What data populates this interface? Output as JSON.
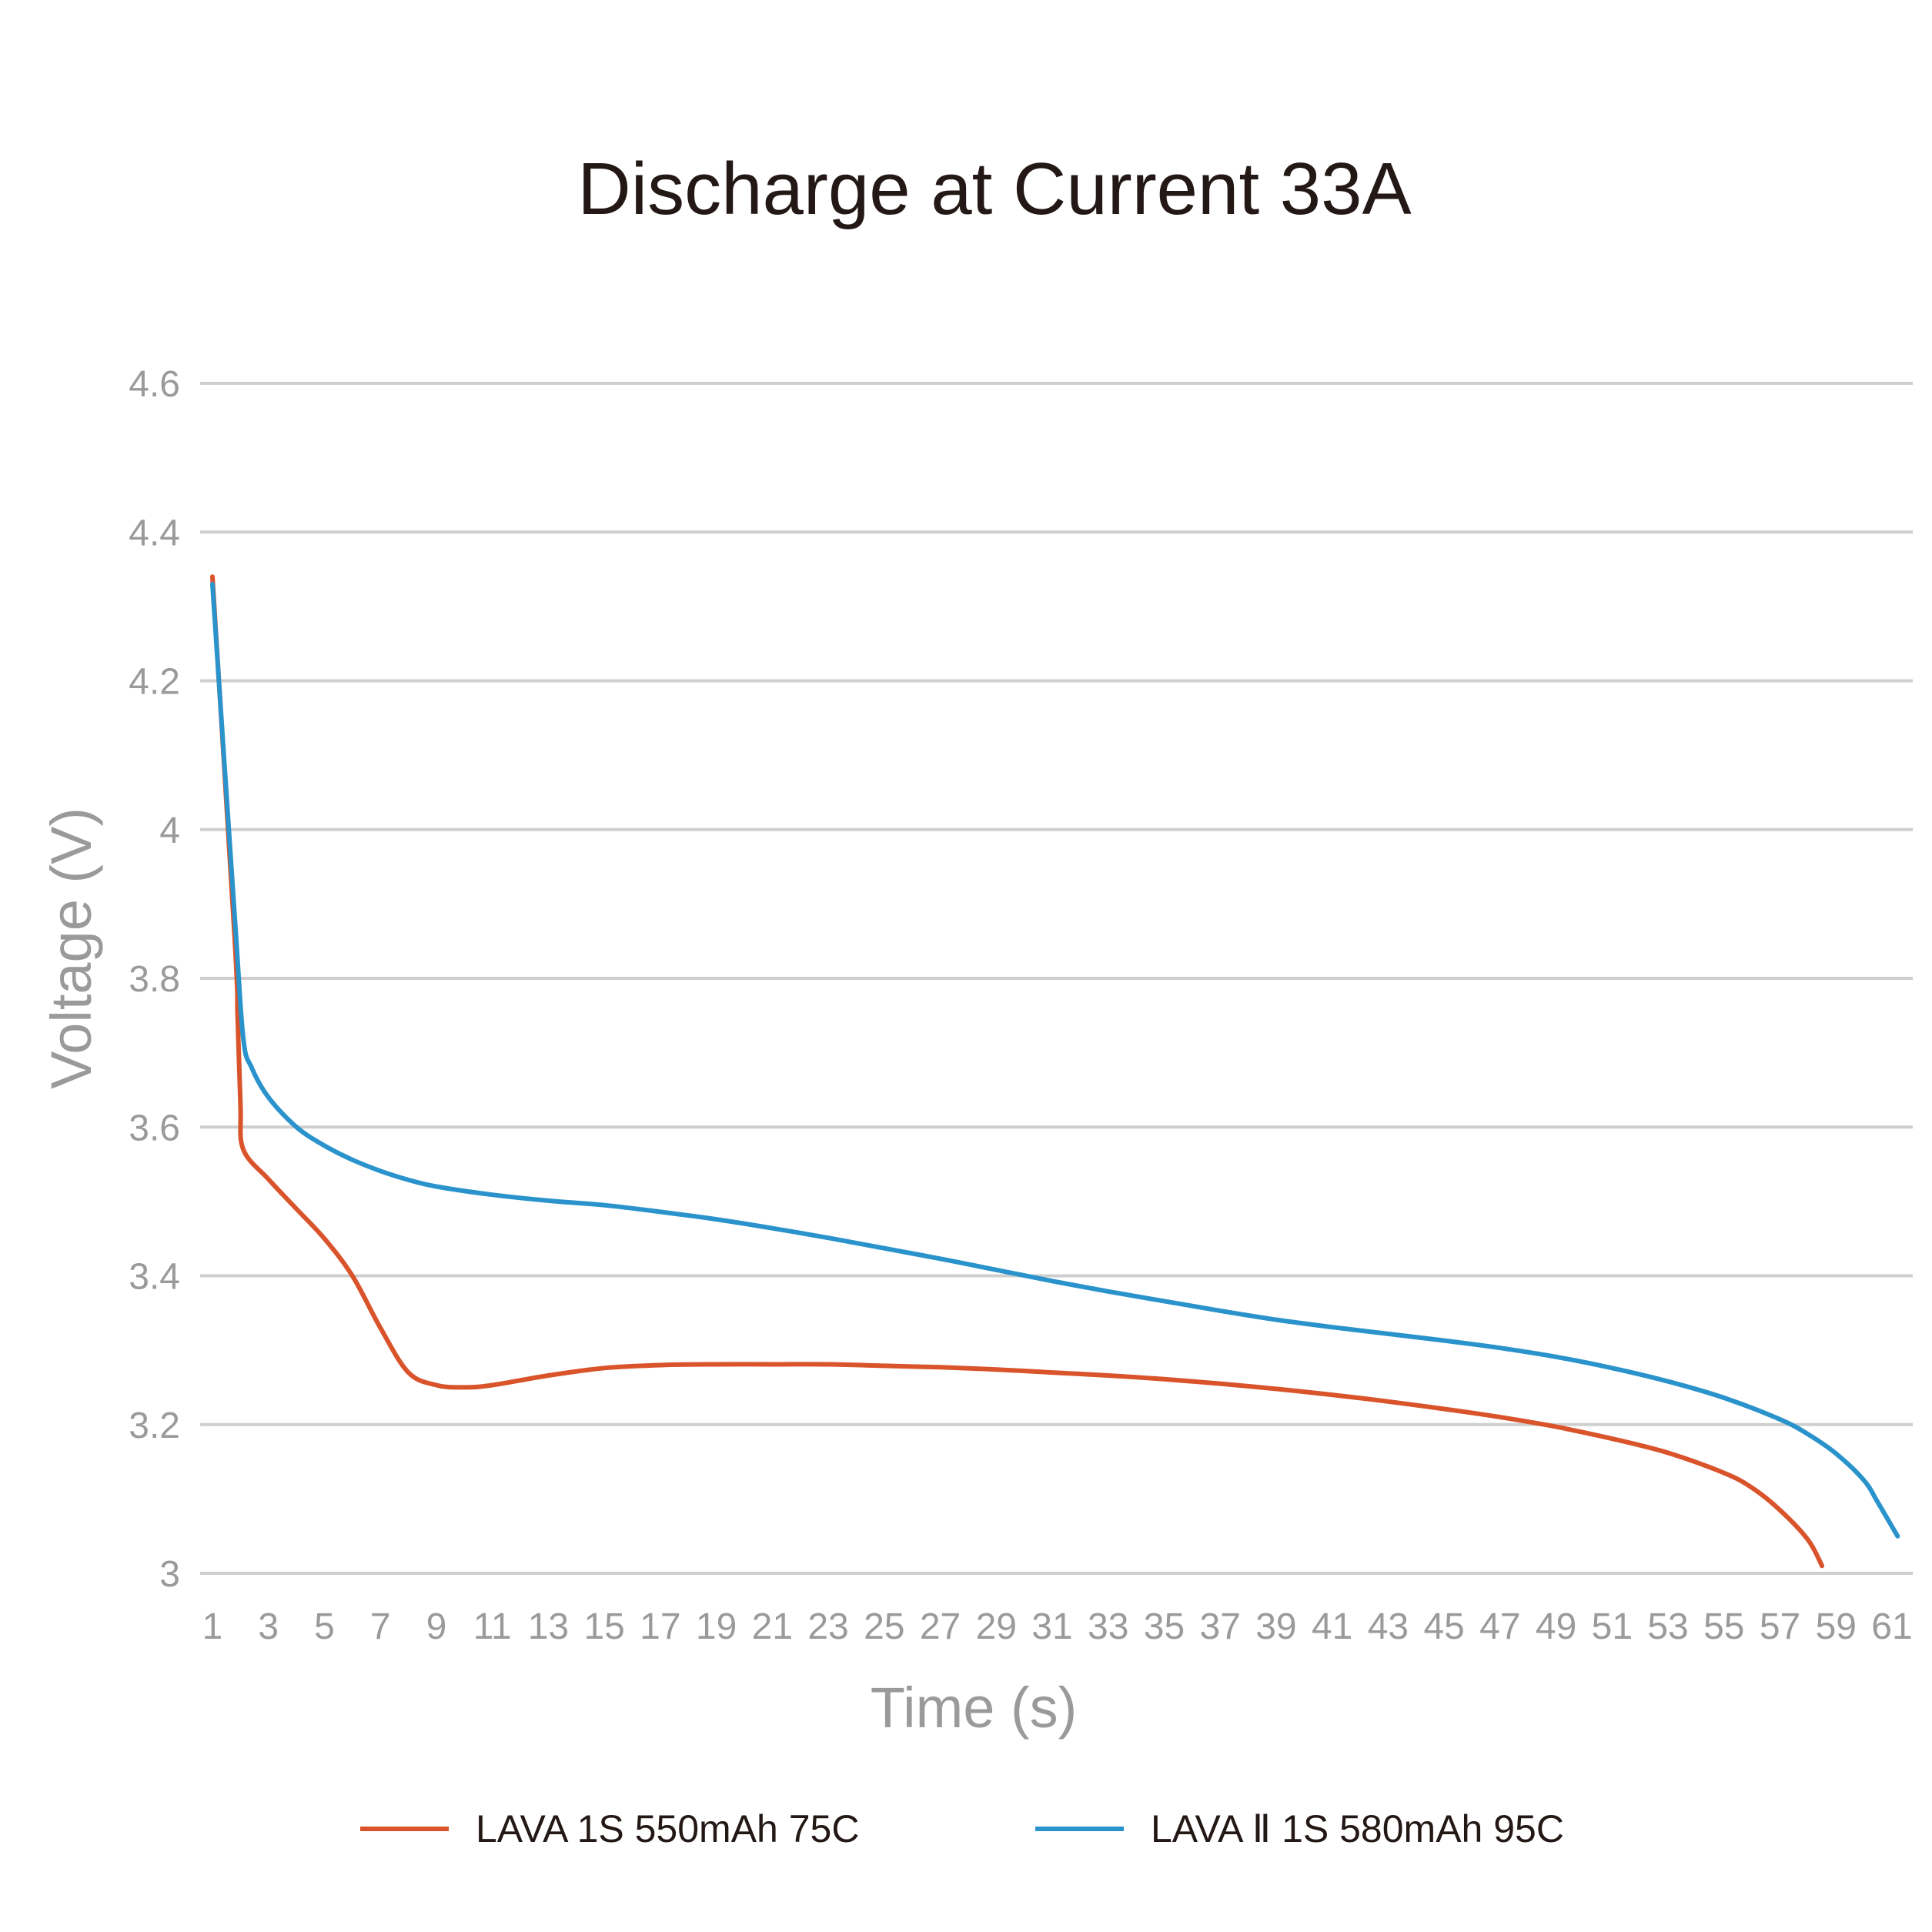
{
  "chart_data": {
    "type": "line",
    "title": "Discharge at Current 33A",
    "xlabel": "Time (s)",
    "ylabel": "Voltage (V)",
    "ylim": [
      3.0,
      4.6
    ],
    "xlim": [
      1,
      61
    ],
    "y_ticks": [
      "4.6",
      "4.4",
      "4.2",
      "4",
      "3.8",
      "3.6",
      "3.4",
      "3.2",
      "3"
    ],
    "x_ticks": [
      "1",
      "3",
      "5",
      "7",
      "9",
      "11",
      "13",
      "15",
      "17",
      "19",
      "21",
      "23",
      "25",
      "27",
      "29",
      "31",
      "33",
      "35",
      "37",
      "39",
      "41",
      "43",
      "45",
      "47",
      "49",
      "51",
      "53",
      "55",
      "57",
      "59",
      "61"
    ],
    "grid": true,
    "legend_position": "bottom",
    "series": [
      {
        "name": "LAVA 1S 550mAh 75C",
        "color": "#d9532b",
        "points": [
          [
            1.0,
            4.34
          ],
          [
            1.8,
            3.85
          ],
          [
            1.9,
            3.75
          ],
          [
            2.0,
            3.63
          ],
          [
            2.1,
            3.57
          ],
          [
            3.0,
            3.53
          ],
          [
            4.0,
            3.49
          ],
          [
            5.0,
            3.45
          ],
          [
            6.0,
            3.4
          ],
          [
            7.0,
            3.33
          ],
          [
            8.0,
            3.27
          ],
          [
            9.0,
            3.253
          ],
          [
            10.0,
            3.25
          ],
          [
            11.0,
            3.253
          ],
          [
            13.0,
            3.266
          ],
          [
            15.0,
            3.276
          ],
          [
            17.0,
            3.28
          ],
          [
            19.0,
            3.281
          ],
          [
            21.0,
            3.281
          ],
          [
            23.0,
            3.281
          ],
          [
            25.0,
            3.279
          ],
          [
            27.0,
            3.277
          ],
          [
            29.0,
            3.274
          ],
          [
            31.0,
            3.27
          ],
          [
            33.0,
            3.266
          ],
          [
            35.0,
            3.261
          ],
          [
            37.0,
            3.255
          ],
          [
            39.0,
            3.248
          ],
          [
            41.0,
            3.24
          ],
          [
            43.0,
            3.231
          ],
          [
            45.0,
            3.221
          ],
          [
            47.0,
            3.21
          ],
          [
            49.0,
            3.197
          ],
          [
            51.0,
            3.181
          ],
          [
            53.0,
            3.162
          ],
          [
            55.0,
            3.135
          ],
          [
            56.0,
            3.115
          ],
          [
            57.0,
            3.085
          ],
          [
            58.0,
            3.045
          ],
          [
            58.5,
            3.01
          ]
        ]
      },
      {
        "name": "LAVA Ⅱ 1S 580mAh 95C",
        "color": "#2a93cc",
        "points": [
          [
            1.0,
            4.33
          ],
          [
            1.8,
            3.88
          ],
          [
            2.1,
            3.72
          ],
          [
            2.4,
            3.68
          ],
          [
            3.0,
            3.64
          ],
          [
            4.0,
            3.6
          ],
          [
            5.0,
            3.575
          ],
          [
            6.0,
            3.556
          ],
          [
            7.0,
            3.541
          ],
          [
            8.0,
            3.529
          ],
          [
            9.0,
            3.52
          ],
          [
            11.0,
            3.509
          ],
          [
            13.0,
            3.501
          ],
          [
            15.0,
            3.495
          ],
          [
            17.0,
            3.486
          ],
          [
            19.0,
            3.476
          ],
          [
            21.0,
            3.464
          ],
          [
            23.0,
            3.451
          ],
          [
            25.0,
            3.437
          ],
          [
            27.0,
            3.423
          ],
          [
            29.0,
            3.408
          ],
          [
            31.0,
            3.393
          ],
          [
            33.0,
            3.379
          ],
          [
            35.0,
            3.366
          ],
          [
            37.0,
            3.353
          ],
          [
            39.0,
            3.341
          ],
          [
            41.0,
            3.331
          ],
          [
            43.0,
            3.322
          ],
          [
            45.0,
            3.313
          ],
          [
            47.0,
            3.303
          ],
          [
            49.0,
            3.291
          ],
          [
            51.0,
            3.276
          ],
          [
            53.0,
            3.258
          ],
          [
            55.0,
            3.236
          ],
          [
            57.0,
            3.207
          ],
          [
            58.0,
            3.187
          ],
          [
            59.0,
            3.161
          ],
          [
            60.0,
            3.125
          ],
          [
            60.5,
            3.095
          ],
          [
            61.2,
            3.05
          ]
        ]
      }
    ]
  }
}
